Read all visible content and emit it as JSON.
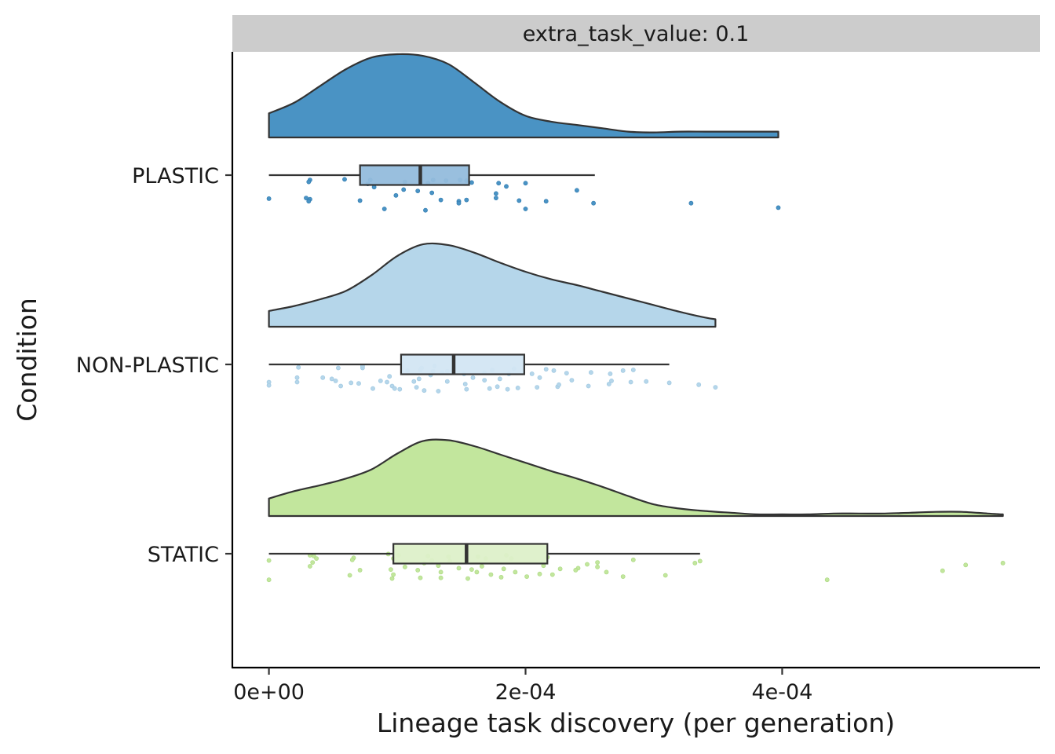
{
  "chart_data": {
    "type": "raincloud",
    "facet_label": "extra_task_value: 0.1",
    "xlabel": "Lineage task discovery (per generation)",
    "ylabel": "Condition",
    "xlim": [
      -2.85e-05,
      0.000601
    ],
    "x_ticks": [
      {
        "value": 0,
        "label": "0e+00"
      },
      {
        "value": 0.0002,
        "label": "2e-04"
      },
      {
        "value": 0.0004,
        "label": "4e-04"
      }
    ],
    "groups": [
      {
        "name": "PLASTIC",
        "color": "#4a93c4",
        "box_fill": "#93bcdc",
        "box": {
          "whisker_low": 0.0,
          "q1": 7.1e-05,
          "median": 0.000118,
          "q3": 0.000156,
          "whisker_high": 0.000254
        },
        "density": [
          [
            0,
            0.29
          ],
          [
            2e-05,
            0.42
          ],
          [
            4e-05,
            0.62
          ],
          [
            6e-05,
            0.82
          ],
          [
            8e-05,
            0.96
          ],
          [
            0.0001,
            1.0
          ],
          [
            0.00012,
            0.98
          ],
          [
            0.00014,
            0.88
          ],
          [
            0.00016,
            0.66
          ],
          [
            0.00018,
            0.43
          ],
          [
            0.0002,
            0.26
          ],
          [
            0.00022,
            0.19
          ],
          [
            0.00024,
            0.15
          ],
          [
            0.00026,
            0.11
          ],
          [
            0.00028,
            0.07
          ],
          [
            0.0003,
            0.06
          ],
          [
            0.00032,
            0.07
          ],
          [
            0.00034,
            0.07
          ],
          [
            0.00036,
            0.07
          ],
          [
            0.00038,
            0.07
          ],
          [
            0.000397,
            0.07
          ]
        ],
        "points": [
          [
            3.2e-05,
            0.73
          ],
          [
            5.9e-05,
            0.74
          ],
          [
            7.9e-05,
            0.73
          ],
          [
            0.000128,
            0.73
          ],
          [
            0.000138,
            0.72
          ],
          [
            0.000149,
            0.73
          ],
          [
            0.000154,
            0.72
          ],
          [
            3.1e-05,
            0.7
          ],
          [
            7.7e-05,
            0.67
          ],
          [
            0.000106,
            0.7
          ],
          [
            0.000124,
            0.68
          ],
          [
            0.000158,
            0.69
          ],
          [
            0.000179,
            0.68
          ],
          [
            0.0002,
            0.68
          ],
          [
            0.000185,
            0.63
          ],
          [
            0.00024,
            0.57
          ],
          [
            0.000105,
            0.58
          ],
          [
            0.000116,
            0.56
          ],
          [
            9.9e-05,
            0.49
          ],
          [
            0.000134,
            0.42
          ],
          [
            0.000154,
            0.42
          ],
          [
            0.000177,
            0.45
          ],
          [
            0.000195,
            0.41
          ],
          [
            0.000216,
            0.4
          ],
          [
            2.9e-05,
            0.45
          ],
          [
            3.2e-05,
            0.43
          ],
          [
            0.0,
            0.44
          ],
          [
            3.1e-05,
            0.4
          ],
          [
            0.000148,
            0.4
          ],
          [
            7.1e-05,
            0.41
          ],
          [
            0.000148,
            0.37
          ],
          [
            0.000253,
            0.37
          ],
          [
            0.000329,
            0.37
          ],
          [
            0.000397,
            0.3
          ],
          [
            9e-05,
            0.28
          ],
          [
            0.000122,
            0.26
          ],
          [
            0.0002,
            0.28
          ],
          [
            8.2e-05,
            0.62
          ],
          [
            0.000127,
            0.53
          ],
          [
            0.000177,
            0.52
          ]
        ]
      },
      {
        "name": "NON-PLASTIC",
        "color": "#b5d6ea",
        "box_fill": "#d3e6f3",
        "box": {
          "whisker_low": 0.0,
          "q1": 0.000103,
          "median": 0.000144,
          "q3": 0.000199,
          "whisker_high": 0.000312
        },
        "density": [
          [
            0,
            0.19
          ],
          [
            2e-05,
            0.25
          ],
          [
            4e-05,
            0.33
          ],
          [
            6e-05,
            0.43
          ],
          [
            8e-05,
            0.62
          ],
          [
            0.0001,
            0.85
          ],
          [
            0.00012,
            0.99
          ],
          [
            0.00014,
            0.98
          ],
          [
            0.00016,
            0.89
          ],
          [
            0.00018,
            0.77
          ],
          [
            0.0002,
            0.66
          ],
          [
            0.00022,
            0.57
          ],
          [
            0.00024,
            0.5
          ],
          [
            0.00026,
            0.42
          ],
          [
            0.00028,
            0.34
          ],
          [
            0.0003,
            0.26
          ],
          [
            0.00032,
            0.18
          ],
          [
            0.00034,
            0.11
          ],
          [
            0.000348,
            0.09
          ]
        ],
        "points": [
          [
            2.3e-05,
            0.76
          ],
          [
            5.4e-05,
            0.75
          ],
          [
            7.3e-05,
            0.75
          ],
          [
            7.3e-05,
            0.78
          ],
          [
            0.000129,
            0.78
          ],
          [
            0.000119,
            0.75
          ],
          [
            0.000144,
            0.74
          ],
          [
            0.000118,
            0.72
          ],
          [
            0.000128,
            0.7
          ],
          [
            0.000139,
            0.7
          ],
          [
            0.000174,
            0.72
          ],
          [
            0.000191,
            0.74
          ],
          [
            0.000216,
            0.73
          ],
          [
            0.000251,
            0.68
          ],
          [
            0.000276,
            0.71
          ],
          [
            0.000284,
            0.72
          ],
          [
            0.000266,
            0.66
          ],
          [
            0.000232,
            0.67
          ],
          [
            0.000222,
            0.71
          ],
          [
            0.000205,
            0.66
          ],
          [
            0.000187,
            0.66
          ],
          [
            0.000168,
            0.68
          ],
          [
            0.000152,
            0.66
          ],
          [
            0.000143,
            0.7
          ],
          [
            0.000126,
            0.64
          ],
          [
            0.000117,
            0.58
          ],
          [
            9.4e-05,
            0.62
          ],
          [
            4.2e-05,
            0.6
          ],
          [
            4.9e-05,
            0.58
          ],
          [
            2.2e-05,
            0.6
          ],
          [
            5.2e-05,
            0.55
          ],
          [
            2.2e-05,
            0.53
          ],
          [
            0.0,
            0.53
          ],
          [
            5.6e-05,
            0.47
          ],
          [
            8.1e-05,
            0.43
          ],
          [
            0.000102,
            0.42
          ],
          [
            0.000121,
            0.4
          ],
          [
            0.000132,
            0.39
          ],
          [
            0.000154,
            0.42
          ],
          [
            0.000172,
            0.43
          ],
          [
            0.000194,
            0.44
          ],
          [
            0.000209,
            0.45
          ],
          [
            0.000225,
            0.46
          ],
          [
            0.000249,
            0.47
          ],
          [
            0.000265,
            0.5
          ],
          [
            0.000282,
            0.53
          ],
          [
            0.000294,
            0.54
          ],
          [
            0.000312,
            0.52
          ],
          [
            0.000335,
            0.49
          ],
          [
            0.000348,
            0.45
          ],
          [
            0.000267,
            0.55
          ],
          [
            0.000236,
            0.56
          ],
          [
            0.000211,
            0.6
          ],
          [
            0.00018,
            0.58
          ],
          [
            0.000159,
            0.6
          ],
          [
            0.000139,
            0.54
          ],
          [
            0.000113,
            0.54
          ],
          [
            9.2e-05,
            0.53
          ],
          [
            7e-05,
            0.51
          ],
          [
            0.0,
            0.48
          ],
          [
            8.7e-05,
            0.55
          ],
          [
            9.6e-05,
            0.47
          ],
          [
            0.000115,
            0.45
          ],
          [
            9.8e-05,
            0.43
          ],
          [
            0.000168,
            0.56
          ],
          [
            6.4e-05,
            0.52
          ],
          [
            0.000135,
            0.68
          ],
          [
            0.000108,
            0.71
          ],
          [
            0.000226,
            0.49
          ],
          [
            0.000186,
            0.42
          ],
          [
            0.000153,
            0.5
          ],
          [
            0.000178,
            0.46
          ]
        ]
      },
      {
        "name": "STATIC",
        "color": "#c2e69d",
        "box_fill": "#ddf0c9",
        "box": {
          "whisker_low": 0.0,
          "q1": 9.7e-05,
          "median": 0.000154,
          "q3": 0.000217,
          "whisker_high": 0.000336
        },
        "density": [
          [
            0,
            0.21
          ],
          [
            2e-05,
            0.3
          ],
          [
            4e-05,
            0.37
          ],
          [
            6e-05,
            0.45
          ],
          [
            8e-05,
            0.56
          ],
          [
            0.0001,
            0.75
          ],
          [
            0.00012,
            0.9
          ],
          [
            0.00014,
            0.91
          ],
          [
            0.00016,
            0.84
          ],
          [
            0.00018,
            0.74
          ],
          [
            0.0002,
            0.64
          ],
          [
            0.00022,
            0.54
          ],
          [
            0.00024,
            0.45
          ],
          [
            0.00026,
            0.35
          ],
          [
            0.00028,
            0.24
          ],
          [
            0.0003,
            0.14
          ],
          [
            0.00032,
            0.09
          ],
          [
            0.00034,
            0.06
          ],
          [
            0.00036,
            0.04
          ],
          [
            0.00038,
            0.02
          ],
          [
            0.0004,
            0.02
          ],
          [
            0.00042,
            0.02
          ],
          [
            0.00044,
            0.03
          ],
          [
            0.00046,
            0.03
          ],
          [
            0.00048,
            0.03
          ],
          [
            0.0005,
            0.04
          ],
          [
            0.00052,
            0.05
          ],
          [
            0.00054,
            0.05
          ],
          [
            0.00056,
            0.03
          ],
          [
            0.000572,
            0.02
          ]
        ],
        "points": [
          [
            3.2e-05,
            0.78
          ],
          [
            3.5e-05,
            0.77
          ],
          [
            6.6e-05,
            0.74
          ],
          [
            9.3e-05,
            0.8
          ],
          [
            0.000101,
            0.78
          ],
          [
            0.000124,
            0.77
          ],
          [
            0.00014,
            0.76
          ],
          [
            0.000163,
            0.76
          ],
          [
            0.000185,
            0.78
          ],
          [
            0.000217,
            0.75
          ],
          [
            0.000169,
            0.73
          ],
          [
            0.000141,
            0.69
          ],
          [
            0.000127,
            0.7
          ],
          [
            9.7e-05,
            0.73
          ],
          [
            6.5e-05,
            0.71
          ],
          [
            3.7e-05,
            0.73
          ],
          [
            3.4e-05,
            0.67
          ],
          [
            0.0,
            0.7
          ],
          [
            3.2e-05,
            0.61
          ],
          [
            7.1e-05,
            0.55
          ],
          [
            9.5e-05,
            0.56
          ],
          [
            0.000134,
            0.52
          ],
          [
            0.000158,
            0.56
          ],
          [
            0.000183,
            0.57
          ],
          [
            0.000214,
            0.62
          ],
          [
            0.000248,
            0.64
          ],
          [
            0.000256,
            0.67
          ],
          [
            0.000284,
            0.71
          ],
          [
            0.000336,
            0.69
          ],
          [
            0.000263,
            0.52
          ],
          [
            0.000309,
            0.47
          ],
          [
            0.000332,
            0.66
          ],
          [
            0.000241,
            0.58
          ],
          [
            0.000221,
            0.48
          ],
          [
            0.000201,
            0.45
          ],
          [
            0.000181,
            0.44
          ],
          [
            0.000155,
            0.42
          ],
          [
            0.000118,
            0.43
          ],
          [
            9.7e-05,
            0.48
          ],
          [
            6.3e-05,
            0.47
          ],
          [
            0.0,
            0.4
          ],
          [
            0.000132,
            0.62
          ],
          [
            0.000166,
            0.61
          ],
          [
            0.000192,
            0.52
          ],
          [
            0.000211,
            0.49
          ],
          [
            0.000239,
            0.55
          ],
          [
            0.000276,
            0.45
          ],
          [
            0.000435,
            0.4
          ],
          [
            0.000525,
            0.54
          ],
          [
            0.000543,
            0.63
          ],
          [
            0.000572,
            0.66
          ],
          [
            0.000106,
            0.6
          ],
          [
            0.000121,
            0.66
          ],
          [
            0.000148,
            0.58
          ],
          [
            0.000173,
            0.48
          ],
          [
            0.000189,
            0.73
          ],
          [
            0.000227,
            0.57
          ],
          [
            0.000256,
            0.6
          ],
          [
            0.000116,
            0.55
          ],
          [
            0.000134,
            0.43
          ],
          [
            0.000162,
            0.52
          ],
          [
            9.6e-05,
            0.42
          ]
        ]
      }
    ]
  }
}
